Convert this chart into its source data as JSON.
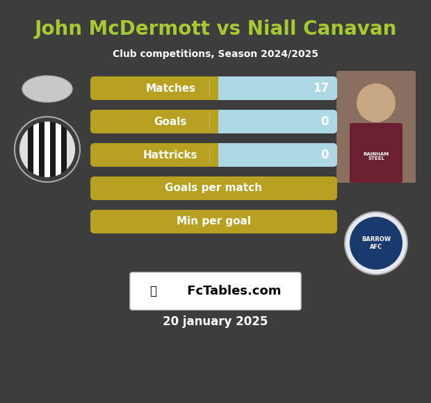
{
  "title": "John McDermott vs Niall Canavan",
  "subtitle": "Club competitions, Season 2024/2025",
  "date": "20 january 2025",
  "background_color": "#3d3d3d",
  "title_color": "#a8c832",
  "subtitle_color": "#ffffff",
  "date_color": "#ffffff",
  "stats": [
    {
      "label": "Matches",
      "right_val": "17",
      "has_split": true
    },
    {
      "label": "Goals",
      "right_val": "0",
      "has_split": true
    },
    {
      "label": "Hattricks",
      "right_val": "0",
      "has_split": true
    },
    {
      "label": "Goals per match",
      "right_val": null,
      "has_split": false
    },
    {
      "label": "Min per goal",
      "right_val": null,
      "has_split": false
    }
  ],
  "bar_left_color": "#b8a020",
  "bar_right_color": "#add8e6",
  "bar_text_color": "#ffffff",
  "watermark_text": " FcTables.com",
  "watermark_bg": "#ffffff",
  "fig_width": 6.2,
  "fig_height": 5.8,
  "dpi": 100
}
